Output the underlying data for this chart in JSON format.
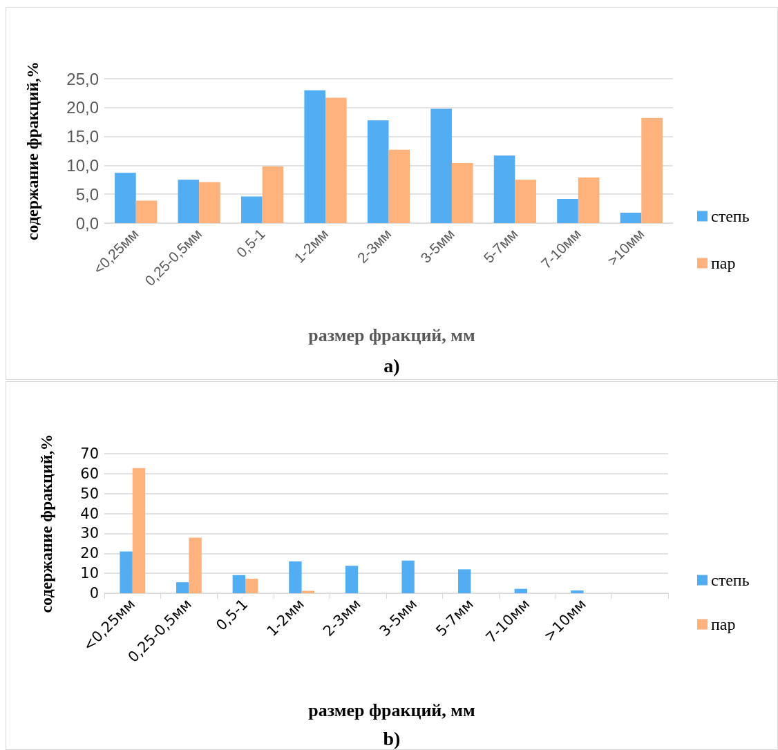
{
  "chart_data": [
    {
      "type": "bar",
      "xlabel": "размер фракций, мм",
      "ylabel": "содержание фракций,%",
      "annotations": [
        "a)"
      ],
      "categories": [
        "<0,25мм",
        "0,25-0,5мм",
        "0,5-1",
        "1-2мм",
        "2-3мм",
        "3-5мм",
        "5-7мм",
        "7-10мм",
        ">10мм"
      ],
      "series": [
        {
          "name": "степь",
          "color": "#52adf2",
          "values": [
            8.7,
            7.5,
            4.6,
            23.0,
            17.8,
            19.8,
            11.7,
            4.2,
            1.8
          ]
        },
        {
          "name": "пар",
          "color": "#ffb27c",
          "values": [
            3.9,
            7.1,
            9.8,
            21.7,
            12.7,
            10.4,
            7.5,
            7.9,
            18.2
          ]
        }
      ],
      "ylim": [
        0,
        25
      ],
      "yticks": [
        {
          "value": 0,
          "label": "0,0"
        },
        {
          "value": 5,
          "label": "5,0"
        },
        {
          "value": 10,
          "label": "10,0"
        },
        {
          "value": 15,
          "label": "15,0"
        },
        {
          "value": 20,
          "label": "20,0"
        },
        {
          "value": 25,
          "label": "25,0"
        }
      ],
      "grid": "y",
      "legend": "right"
    },
    {
      "type": "bar",
      "xlabel": "размер фракций, мм",
      "ylabel": "содержание фракций,%",
      "annotations": [
        "b)"
      ],
      "categories": [
        "<0,25мм",
        "0,25-0,5мм",
        "0,5-1",
        "1-2мм",
        "2-3мм",
        "3-5мм",
        "5-7мм",
        "7-10мм",
        ">10мм",
        null
      ],
      "series": [
        {
          "name": "степь",
          "color": "#52adf2",
          "values": [
            21,
            5.5,
            9.1,
            16,
            13.8,
            16.4,
            12,
            2.2,
            1.4,
            null
          ]
        },
        {
          "name": "пар",
          "color": "#ffb27c",
          "values": [
            62.8,
            27.9,
            7.3,
            1.2,
            0,
            0,
            0,
            0,
            0,
            null
          ]
        }
      ],
      "ylim": [
        0,
        70
      ],
      "yticks": [
        0,
        10,
        20,
        30,
        40,
        50,
        60,
        70
      ],
      "grid": "y",
      "legend": "right"
    }
  ]
}
